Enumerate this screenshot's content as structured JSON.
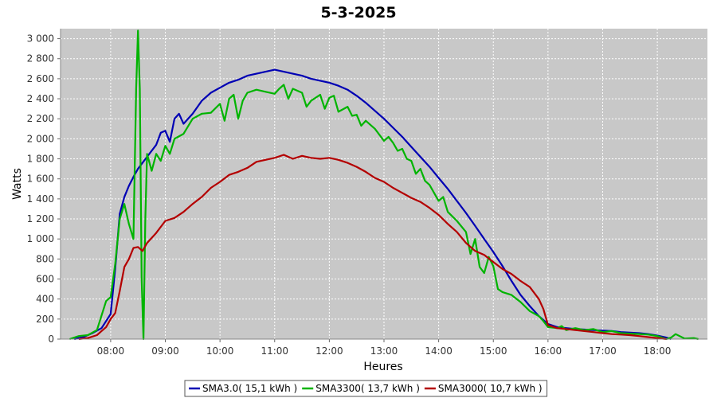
{
  "chart_data": {
    "type": "line",
    "title": "5-3-2025",
    "xlabel": "Heures",
    "ylabel": "Watts",
    "xlim": [
      "07:05",
      "18:55"
    ],
    "ylim": [
      0,
      3100
    ],
    "x_ticks": [
      "08:00",
      "09:00",
      "10:00",
      "11:00",
      "12:00",
      "13:00",
      "14:00",
      "15:00",
      "16:00",
      "17:00",
      "18:00"
    ],
    "y_ticks": [
      "0",
      "200",
      "400",
      "600",
      "800",
      "1 000",
      "1 200",
      "1 400",
      "1 600",
      "1 800",
      "2 000",
      "2 200",
      "2 400",
      "2 600",
      "2 800",
      "3 000"
    ],
    "grid": true,
    "legend_position": "bottom",
    "series": [
      {
        "name": "SMA3.0( 15,1 kWh )",
        "color": "#0000b4",
        "points": [
          [
            "07:20",
            0
          ],
          [
            "07:30",
            20
          ],
          [
            "07:40",
            60
          ],
          [
            "07:50",
            110
          ],
          [
            "08:00",
            250
          ],
          [
            "08:05",
            700
          ],
          [
            "08:10",
            1250
          ],
          [
            "08:15",
            1420
          ],
          [
            "08:20",
            1530
          ],
          [
            "08:25",
            1620
          ],
          [
            "08:30",
            1700
          ],
          [
            "08:40",
            1820
          ],
          [
            "08:50",
            1940
          ],
          [
            "08:55",
            2060
          ],
          [
            "09:00",
            2080
          ],
          [
            "09:05",
            1970
          ],
          [
            "09:10",
            2200
          ],
          [
            "09:15",
            2250
          ],
          [
            "09:20",
            2150
          ],
          [
            "09:30",
            2250
          ],
          [
            "09:40",
            2380
          ],
          [
            "09:50",
            2460
          ],
          [
            "10:00",
            2510
          ],
          [
            "10:10",
            2560
          ],
          [
            "10:20",
            2590
          ],
          [
            "10:30",
            2630
          ],
          [
            "10:40",
            2650
          ],
          [
            "10:50",
            2670
          ],
          [
            "11:00",
            2690
          ],
          [
            "11:10",
            2670
          ],
          [
            "11:20",
            2650
          ],
          [
            "11:30",
            2630
          ],
          [
            "11:40",
            2600
          ],
          [
            "11:50",
            2580
          ],
          [
            "12:00",
            2560
          ],
          [
            "12:10",
            2530
          ],
          [
            "12:20",
            2490
          ],
          [
            "12:30",
            2430
          ],
          [
            "12:40",
            2360
          ],
          [
            "12:50",
            2280
          ],
          [
            "13:00",
            2200
          ],
          [
            "13:10",
            2110
          ],
          [
            "13:20",
            2020
          ],
          [
            "13:30",
            1920
          ],
          [
            "13:40",
            1820
          ],
          [
            "13:50",
            1720
          ],
          [
            "14:00",
            1610
          ],
          [
            "14:10",
            1500
          ],
          [
            "14:20",
            1380
          ],
          [
            "14:30",
            1260
          ],
          [
            "14:40",
            1130
          ],
          [
            "14:50",
            1000
          ],
          [
            "15:00",
            870
          ],
          [
            "15:10",
            730
          ],
          [
            "15:20",
            580
          ],
          [
            "15:30",
            440
          ],
          [
            "15:40",
            330
          ],
          [
            "15:50",
            230
          ],
          [
            "16:00",
            150
          ],
          [
            "16:10",
            120
          ],
          [
            "16:20",
            110
          ],
          [
            "16:30",
            100
          ],
          [
            "16:40",
            95
          ],
          [
            "16:50",
            90
          ],
          [
            "17:00",
            85
          ],
          [
            "17:10",
            80
          ],
          [
            "17:20",
            70
          ],
          [
            "17:30",
            65
          ],
          [
            "17:40",
            60
          ],
          [
            "17:50",
            50
          ],
          [
            "18:00",
            35
          ],
          [
            "18:10",
            15
          ],
          [
            "18:15",
            0
          ]
        ]
      },
      {
        "name": "SMA3300( 13,7 kWh )",
        "color": "#00b400",
        "points": [
          [
            "07:15",
            0
          ],
          [
            "07:25",
            30
          ],
          [
            "07:35",
            40
          ],
          [
            "07:45",
            90
          ],
          [
            "07:55",
            380
          ],
          [
            "08:00",
            420
          ],
          [
            "08:05",
            750
          ],
          [
            "08:10",
            1200
          ],
          [
            "08:15",
            1350
          ],
          [
            "08:20",
            1150
          ],
          [
            "08:25",
            1000
          ],
          [
            "08:28",
            2500
          ],
          [
            "08:30",
            3080
          ],
          [
            "08:32",
            2500
          ],
          [
            "08:34",
            600
          ],
          [
            "08:36",
            0
          ],
          [
            "08:38",
            1200
          ],
          [
            "08:40",
            1850
          ],
          [
            "08:45",
            1680
          ],
          [
            "08:50",
            1850
          ],
          [
            "08:55",
            1780
          ],
          [
            "09:00",
            1930
          ],
          [
            "09:05",
            1850
          ],
          [
            "09:10",
            2000
          ],
          [
            "09:20",
            2050
          ],
          [
            "09:30",
            2200
          ],
          [
            "09:40",
            2250
          ],
          [
            "09:50",
            2260
          ],
          [
            "10:00",
            2350
          ],
          [
            "10:05",
            2180
          ],
          [
            "10:10",
            2400
          ],
          [
            "10:15",
            2440
          ],
          [
            "10:20",
            2200
          ],
          [
            "10:25",
            2380
          ],
          [
            "10:30",
            2460
          ],
          [
            "10:40",
            2490
          ],
          [
            "10:50",
            2470
          ],
          [
            "11:00",
            2450
          ],
          [
            "11:05",
            2500
          ],
          [
            "11:10",
            2540
          ],
          [
            "11:15",
            2400
          ],
          [
            "11:20",
            2500
          ],
          [
            "11:30",
            2460
          ],
          [
            "11:35",
            2320
          ],
          [
            "11:40",
            2380
          ],
          [
            "11:50",
            2440
          ],
          [
            "11:55",
            2300
          ],
          [
            "12:00",
            2410
          ],
          [
            "12:05",
            2430
          ],
          [
            "12:10",
            2270
          ],
          [
            "12:20",
            2320
          ],
          [
            "12:25",
            2230
          ],
          [
            "12:30",
            2240
          ],
          [
            "12:35",
            2130
          ],
          [
            "12:40",
            2180
          ],
          [
            "12:50",
            2100
          ],
          [
            "13:00",
            1980
          ],
          [
            "13:05",
            2020
          ],
          [
            "13:10",
            1960
          ],
          [
            "13:15",
            1880
          ],
          [
            "13:20",
            1900
          ],
          [
            "13:25",
            1800
          ],
          [
            "13:30",
            1780
          ],
          [
            "13:35",
            1650
          ],
          [
            "13:40",
            1700
          ],
          [
            "13:45",
            1580
          ],
          [
            "13:50",
            1540
          ],
          [
            "14:00",
            1380
          ],
          [
            "14:05",
            1420
          ],
          [
            "14:10",
            1270
          ],
          [
            "14:20",
            1180
          ],
          [
            "14:30",
            1070
          ],
          [
            "14:35",
            850
          ],
          [
            "14:40",
            1000
          ],
          [
            "14:45",
            720
          ],
          [
            "14:50",
            660
          ],
          [
            "14:55",
            820
          ],
          [
            "15:00",
            730
          ],
          [
            "15:05",
            500
          ],
          [
            "15:10",
            470
          ],
          [
            "15:20",
            440
          ],
          [
            "15:30",
            370
          ],
          [
            "15:40",
            280
          ],
          [
            "15:50",
            230
          ],
          [
            "15:55",
            180
          ],
          [
            "16:00",
            120
          ],
          [
            "16:10",
            110
          ],
          [
            "16:15",
            130
          ],
          [
            "16:20",
            90
          ],
          [
            "16:30",
            110
          ],
          [
            "16:40",
            90
          ],
          [
            "16:50",
            100
          ],
          [
            "17:00",
            70
          ],
          [
            "17:10",
            80
          ],
          [
            "17:20",
            60
          ],
          [
            "17:30",
            55
          ],
          [
            "17:40",
            50
          ],
          [
            "17:50",
            45
          ],
          [
            "18:00",
            30
          ],
          [
            "18:10",
            0
          ],
          [
            "18:15",
            15
          ],
          [
            "18:20",
            50
          ],
          [
            "18:30",
            5
          ],
          [
            "18:40",
            10
          ],
          [
            "18:45",
            0
          ]
        ]
      },
      {
        "name": "SMA3000( 10,7 kWh )",
        "color": "#b40000",
        "points": [
          [
            "07:25",
            0
          ],
          [
            "07:35",
            10
          ],
          [
            "07:45",
            40
          ],
          [
            "07:55",
            120
          ],
          [
            "08:00",
            200
          ],
          [
            "08:05",
            260
          ],
          [
            "08:10",
            480
          ],
          [
            "08:15",
            720
          ],
          [
            "08:20",
            800
          ],
          [
            "08:25",
            910
          ],
          [
            "08:30",
            920
          ],
          [
            "08:35",
            880
          ],
          [
            "08:40",
            960
          ],
          [
            "08:50",
            1060
          ],
          [
            "09:00",
            1180
          ],
          [
            "09:10",
            1210
          ],
          [
            "09:20",
            1270
          ],
          [
            "09:30",
            1350
          ],
          [
            "09:40",
            1420
          ],
          [
            "09:50",
            1510
          ],
          [
            "10:00",
            1570
          ],
          [
            "10:10",
            1640
          ],
          [
            "10:20",
            1670
          ],
          [
            "10:30",
            1710
          ],
          [
            "10:40",
            1770
          ],
          [
            "10:50",
            1790
          ],
          [
            "11:00",
            1810
          ],
          [
            "11:10",
            1840
          ],
          [
            "11:20",
            1800
          ],
          [
            "11:30",
            1830
          ],
          [
            "11:40",
            1810
          ],
          [
            "11:50",
            1800
          ],
          [
            "12:00",
            1810
          ],
          [
            "12:10",
            1790
          ],
          [
            "12:20",
            1760
          ],
          [
            "12:30",
            1720
          ],
          [
            "12:40",
            1670
          ],
          [
            "12:50",
            1610
          ],
          [
            "13:00",
            1570
          ],
          [
            "13:10",
            1510
          ],
          [
            "13:20",
            1460
          ],
          [
            "13:30",
            1410
          ],
          [
            "13:40",
            1370
          ],
          [
            "13:50",
            1310
          ],
          [
            "14:00",
            1240
          ],
          [
            "14:10",
            1150
          ],
          [
            "14:20",
            1070
          ],
          [
            "14:30",
            960
          ],
          [
            "14:40",
            880
          ],
          [
            "14:50",
            840
          ],
          [
            "15:00",
            770
          ],
          [
            "15:10",
            700
          ],
          [
            "15:20",
            650
          ],
          [
            "15:30",
            580
          ],
          [
            "15:40",
            520
          ],
          [
            "15:50",
            400
          ],
          [
            "15:55",
            300
          ],
          [
            "16:00",
            140
          ],
          [
            "16:10",
            110
          ],
          [
            "16:20",
            100
          ],
          [
            "16:30",
            90
          ],
          [
            "16:40",
            80
          ],
          [
            "16:50",
            70
          ],
          [
            "17:00",
            60
          ],
          [
            "17:10",
            50
          ],
          [
            "17:20",
            45
          ],
          [
            "17:30",
            40
          ],
          [
            "17:40",
            30
          ],
          [
            "17:50",
            20
          ],
          [
            "18:00",
            10
          ],
          [
            "18:10",
            0
          ]
        ]
      }
    ]
  }
}
